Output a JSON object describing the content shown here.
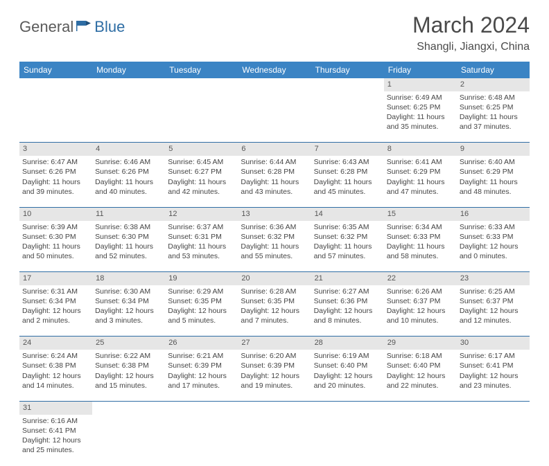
{
  "logo": {
    "part1": "General",
    "part2": "Blue"
  },
  "title": "March 2024",
  "location": "Shangli, Jiangxi, China",
  "colors": {
    "header_bg": "#3b84c4",
    "header_fg": "#ffffff",
    "row_border": "#2e6da4",
    "daynum_bg": "#e6e6e6",
    "text": "#444444"
  },
  "dayHeaders": [
    "Sunday",
    "Monday",
    "Tuesday",
    "Wednesday",
    "Thursday",
    "Friday",
    "Saturday"
  ],
  "weeks": [
    [
      null,
      null,
      null,
      null,
      null,
      {
        "n": "1",
        "sr": "6:49 AM",
        "ss": "6:25 PM",
        "dl": "11 hours and 35 minutes."
      },
      {
        "n": "2",
        "sr": "6:48 AM",
        "ss": "6:25 PM",
        "dl": "11 hours and 37 minutes."
      }
    ],
    [
      {
        "n": "3",
        "sr": "6:47 AM",
        "ss": "6:26 PM",
        "dl": "11 hours and 39 minutes."
      },
      {
        "n": "4",
        "sr": "6:46 AM",
        "ss": "6:26 PM",
        "dl": "11 hours and 40 minutes."
      },
      {
        "n": "5",
        "sr": "6:45 AM",
        "ss": "6:27 PM",
        "dl": "11 hours and 42 minutes."
      },
      {
        "n": "6",
        "sr": "6:44 AM",
        "ss": "6:28 PM",
        "dl": "11 hours and 43 minutes."
      },
      {
        "n": "7",
        "sr": "6:43 AM",
        "ss": "6:28 PM",
        "dl": "11 hours and 45 minutes."
      },
      {
        "n": "8",
        "sr": "6:41 AM",
        "ss": "6:29 PM",
        "dl": "11 hours and 47 minutes."
      },
      {
        "n": "9",
        "sr": "6:40 AM",
        "ss": "6:29 PM",
        "dl": "11 hours and 48 minutes."
      }
    ],
    [
      {
        "n": "10",
        "sr": "6:39 AM",
        "ss": "6:30 PM",
        "dl": "11 hours and 50 minutes."
      },
      {
        "n": "11",
        "sr": "6:38 AM",
        "ss": "6:30 PM",
        "dl": "11 hours and 52 minutes."
      },
      {
        "n": "12",
        "sr": "6:37 AM",
        "ss": "6:31 PM",
        "dl": "11 hours and 53 minutes."
      },
      {
        "n": "13",
        "sr": "6:36 AM",
        "ss": "6:32 PM",
        "dl": "11 hours and 55 minutes."
      },
      {
        "n": "14",
        "sr": "6:35 AM",
        "ss": "6:32 PM",
        "dl": "11 hours and 57 minutes."
      },
      {
        "n": "15",
        "sr": "6:34 AM",
        "ss": "6:33 PM",
        "dl": "11 hours and 58 minutes."
      },
      {
        "n": "16",
        "sr": "6:33 AM",
        "ss": "6:33 PM",
        "dl": "12 hours and 0 minutes."
      }
    ],
    [
      {
        "n": "17",
        "sr": "6:31 AM",
        "ss": "6:34 PM",
        "dl": "12 hours and 2 minutes."
      },
      {
        "n": "18",
        "sr": "6:30 AM",
        "ss": "6:34 PM",
        "dl": "12 hours and 3 minutes."
      },
      {
        "n": "19",
        "sr": "6:29 AM",
        "ss": "6:35 PM",
        "dl": "12 hours and 5 minutes."
      },
      {
        "n": "20",
        "sr": "6:28 AM",
        "ss": "6:35 PM",
        "dl": "12 hours and 7 minutes."
      },
      {
        "n": "21",
        "sr": "6:27 AM",
        "ss": "6:36 PM",
        "dl": "12 hours and 8 minutes."
      },
      {
        "n": "22",
        "sr": "6:26 AM",
        "ss": "6:37 PM",
        "dl": "12 hours and 10 minutes."
      },
      {
        "n": "23",
        "sr": "6:25 AM",
        "ss": "6:37 PM",
        "dl": "12 hours and 12 minutes."
      }
    ],
    [
      {
        "n": "24",
        "sr": "6:24 AM",
        "ss": "6:38 PM",
        "dl": "12 hours and 14 minutes."
      },
      {
        "n": "25",
        "sr": "6:22 AM",
        "ss": "6:38 PM",
        "dl": "12 hours and 15 minutes."
      },
      {
        "n": "26",
        "sr": "6:21 AM",
        "ss": "6:39 PM",
        "dl": "12 hours and 17 minutes."
      },
      {
        "n": "27",
        "sr": "6:20 AM",
        "ss": "6:39 PM",
        "dl": "12 hours and 19 minutes."
      },
      {
        "n": "28",
        "sr": "6:19 AM",
        "ss": "6:40 PM",
        "dl": "12 hours and 20 minutes."
      },
      {
        "n": "29",
        "sr": "6:18 AM",
        "ss": "6:40 PM",
        "dl": "12 hours and 22 minutes."
      },
      {
        "n": "30",
        "sr": "6:17 AM",
        "ss": "6:41 PM",
        "dl": "12 hours and 23 minutes."
      }
    ],
    [
      {
        "n": "31",
        "sr": "6:16 AM",
        "ss": "6:41 PM",
        "dl": "12 hours and 25 minutes."
      },
      null,
      null,
      null,
      null,
      null,
      null
    ]
  ],
  "labels": {
    "sunrise": "Sunrise:",
    "sunset": "Sunset:",
    "daylight": "Daylight:"
  }
}
